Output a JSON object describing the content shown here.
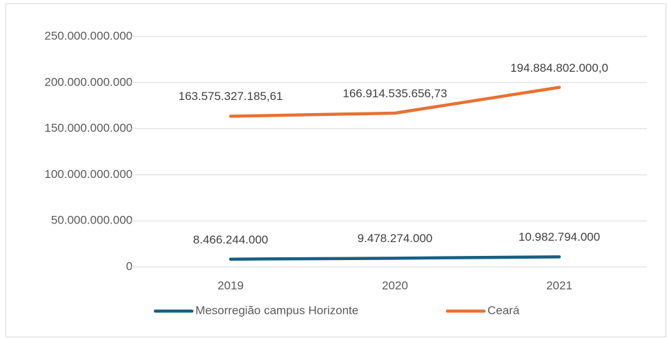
{
  "chart_data": {
    "type": "line",
    "categories": [
      "2019",
      "2020",
      "2021"
    ],
    "series": [
      {
        "name": "Mesorregião campus Horizonte",
        "color": "#156082",
        "values": [
          8466244000,
          9478274000,
          10982794000
        ],
        "value_labels": [
          "8.466.244.000",
          "9.478.274.000",
          "10.982.794.000"
        ]
      },
      {
        "name": "Ceará",
        "color": "#e97132",
        "values": [
          163575327185.61,
          166914535656.73,
          194884802000.0
        ],
        "value_labels": [
          "163.575.327.185,61",
          "166.914.535.656,73",
          "194.884.802.000,0"
        ]
      }
    ],
    "ylim": [
      0,
      250000000000
    ],
    "yticks": [
      0,
      {
        "value": 50000000000,
        "label": "50.000.000.000"
      },
      {
        "value": 100000000000,
        "label": "100.000.000.000"
      },
      {
        "value": 150000000000,
        "label": "150.000.000.000"
      },
      {
        "value": 200000000000,
        "label": "200.000.000.000"
      },
      {
        "value": 250000000000,
        "label": "250.000.000.000"
      }
    ],
    "grid": true,
    "legend": "bottom"
  }
}
